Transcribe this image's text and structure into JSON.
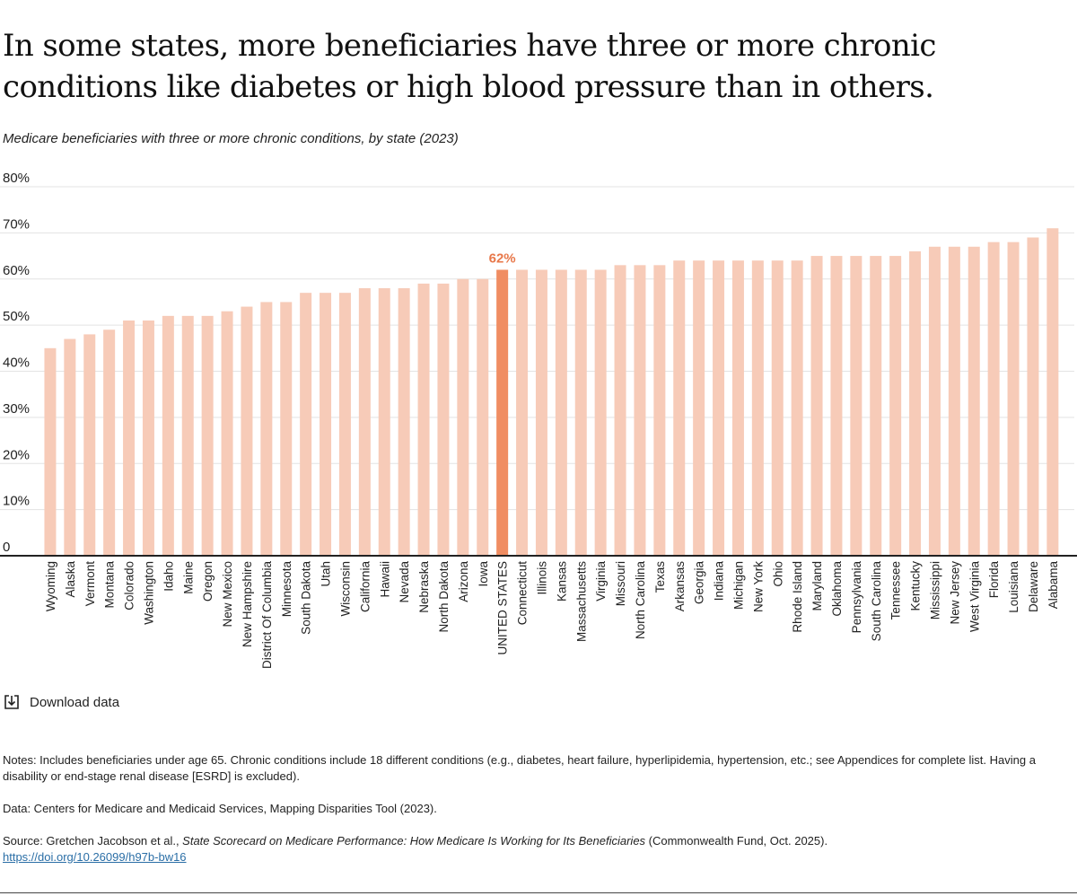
{
  "title": "In some states, more beneficiaries have three or more chronic conditions like diabetes or high blood pressure than in others.",
  "subtitle": "Medicare beneficiaries with three or more chronic conditions, by state (2023)",
  "download_label": "Download data",
  "notes": {
    "notes_text": "Notes: Includes beneficiaries under age 65. Chronic conditions include 18 different conditions (e.g., diabetes, heart failure, hyperlipidemia, hypertension, etc.; see Appendices for complete list. Having a disability or end-stage renal disease [ESRD] is excluded).",
    "data_text": "Data: Centers for Medicare and Medicaid Services, Mapping Disparities Tool (2023).",
    "source_prefix": "Source: Gretchen Jacobson et al., ",
    "source_title": "State Scorecard on Medicare Performance: How Medicare Is Working for Its Beneficiaries",
    "source_suffix": " (Commonwealth Fund, Oct. 2025).",
    "source_link": "https://doi.org/10.26099/h97b-bw16"
  },
  "colors": {
    "bar": "#f7cbb8",
    "highlight": "#f08d62",
    "highlight_label": "#e8784a",
    "grid": "#e3e3e3",
    "axis": "#222222"
  },
  "chart_data": {
    "type": "bar",
    "ylim": [
      0,
      80
    ],
    "yticks": [
      0,
      10,
      20,
      30,
      40,
      50,
      60,
      70,
      80
    ],
    "ytick_labels": [
      "0",
      "10%",
      "20%",
      "30%",
      "40%",
      "50%",
      "60%",
      "70%",
      "80%"
    ],
    "grid": true,
    "highlight_category": "UNITED STATES",
    "highlight_label": "62%",
    "categories": [
      "Wyoming",
      "Alaska",
      "Vermont",
      "Montana",
      "Colorado",
      "Washington",
      "Idaho",
      "Maine",
      "Oregon",
      "New Mexico",
      "New Hampshire",
      "District Of Columbia",
      "Minnesota",
      "South Dakota",
      "Utah",
      "Wisconsin",
      "California",
      "Hawaii",
      "Nevada",
      "Nebraska",
      "North Dakota",
      "Arizona",
      "Iowa",
      "UNITED STATES",
      "Connecticut",
      "Illinois",
      "Kansas",
      "Massachusetts",
      "Virginia",
      "Missouri",
      "North Carolina",
      "Texas",
      "Arkansas",
      "Georgia",
      "Indiana",
      "Michigan",
      "New York",
      "Ohio",
      "Rhode Island",
      "Maryland",
      "Oklahoma",
      "Pennsylvania",
      "South Carolina",
      "Tennessee",
      "Kentucky",
      "Mississippi",
      "New Jersey",
      "West Virginia",
      "Florida",
      "Louisiana",
      "Delaware",
      "Alabama"
    ],
    "values": [
      45,
      47,
      48,
      49,
      51,
      51,
      52,
      52,
      52,
      53,
      54,
      55,
      55,
      57,
      57,
      57,
      58,
      58,
      58,
      59,
      59,
      60,
      60,
      62,
      62,
      62,
      62,
      62,
      62,
      63,
      63,
      63,
      64,
      64,
      64,
      64,
      64,
      64,
      64,
      65,
      65,
      65,
      65,
      65,
      66,
      67,
      67,
      67,
      68,
      68,
      69,
      71
    ]
  }
}
